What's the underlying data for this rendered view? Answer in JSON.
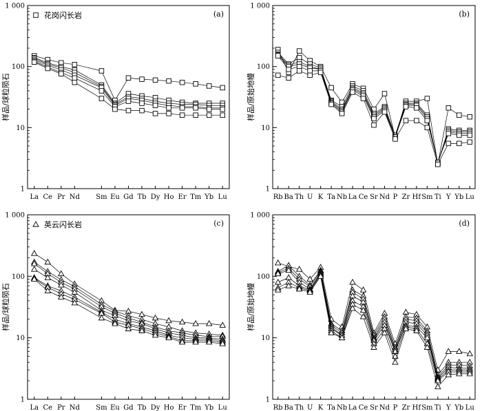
{
  "chart_data": [
    {
      "type": "line",
      "panel": "(a)",
      "ylabel": "样品/球粒陨石",
      "yscale": "log",
      "ylim": [
        1,
        1000
      ],
      "y_ticks": [
        "1",
        "10",
        "100",
        "1 000"
      ],
      "categories": [
        "La",
        "Ce",
        "Pr",
        "Nd",
        "Sm",
        "Eu",
        "Gd",
        "Tb",
        "Dy",
        "Ho",
        "Er",
        "Tm",
        "Yb",
        "Lu"
      ],
      "category_positions": [
        0,
        1,
        2,
        3,
        5,
        6,
        7,
        8,
        9,
        10,
        11,
        12,
        13,
        14
      ],
      "marker": "square",
      "legend": {
        "label": "花岗闪长岩",
        "position": "top-left"
      },
      "series": [
        {
          "values": [
            150,
            130,
            115,
            108,
            85,
            28,
            65,
            62,
            60,
            58,
            55,
            52,
            48,
            45
          ]
        },
        {
          "values": [
            140,
            115,
            100,
            88,
            50,
            25,
            36,
            33,
            31,
            28,
            26,
            25,
            25,
            25
          ]
        },
        {
          "values": [
            135,
            110,
            95,
            80,
            47,
            24,
            32,
            30,
            27,
            25,
            24,
            24,
            23,
            23
          ]
        },
        {
          "values": [
            128,
            105,
            88,
            72,
            45,
            23,
            30,
            28,
            25,
            23,
            22,
            22,
            21,
            21
          ]
        },
        {
          "values": [
            122,
            98,
            80,
            65,
            40,
            22,
            27,
            25,
            23,
            21,
            21,
            21,
            20,
            20
          ]
        },
        {
          "values": [
            118,
            93,
            76,
            55,
            30,
            20,
            19,
            19,
            17,
            17,
            16,
            16,
            16,
            16
          ]
        }
      ]
    },
    {
      "type": "line",
      "panel": "(b)",
      "ylabel": "样品/原始地幔",
      "yscale": "log",
      "ylim": [
        1,
        1000
      ],
      "y_ticks": [
        "1",
        "10",
        "100",
        "1 000"
      ],
      "categories": [
        "Rb",
        "Ba",
        "Th",
        "U",
        "K",
        "Ta",
        "Nb",
        "La",
        "Ce",
        "Sr",
        "Nd",
        "P",
        "Zr",
        "Hf",
        "Sm",
        "Ti",
        "Y",
        "Yb",
        "Lu"
      ],
      "category_positions": [
        0,
        1,
        2,
        3,
        4,
        5,
        6,
        7,
        8,
        9,
        10,
        11,
        12,
        13,
        14,
        15,
        16,
        17,
        18
      ],
      "marker": "square",
      "series": [
        {
          "values": [
            190,
            80,
            180,
            125,
            100,
            45,
            26,
            52,
            44,
            20,
            36,
            7,
            27,
            27,
            30,
            2.5,
            21,
            16,
            15
          ]
        },
        {
          "values": [
            170,
            110,
            140,
            110,
            95,
            28,
            22,
            48,
            40,
            17,
            22,
            7.5,
            25,
            25,
            16,
            2.6,
            9.5,
            9,
            9
          ]
        },
        {
          "values": [
            160,
            105,
            120,
            100,
            90,
            27,
            20,
            45,
            37,
            16,
            21,
            7,
            24,
            24,
            15,
            2.6,
            9,
            8.5,
            8.5
          ]
        },
        {
          "values": [
            155,
            100,
            110,
            95,
            90,
            26,
            19,
            43,
            35,
            15,
            20,
            7,
            23,
            23,
            14,
            2.7,
            8.5,
            8,
            8
          ]
        },
        {
          "values": [
            150,
            90,
            100,
            85,
            85,
            25,
            18,
            41,
            33,
            14,
            19,
            7,
            22,
            21,
            13,
            2.7,
            8,
            7.5,
            7.5
          ]
        },
        {
          "values": [
            72,
            65,
            85,
            72,
            80,
            24,
            17,
            38,
            30,
            11,
            18,
            6.5,
            13,
            13,
            10,
            2.5,
            5.5,
            5.5,
            5.8
          ]
        }
      ]
    },
    {
      "type": "line",
      "panel": "(c)",
      "ylabel": "样品/球粒陨石",
      "yscale": "log",
      "ylim": [
        1,
        1000
      ],
      "y_ticks": [
        "1",
        "10",
        "100",
        "1 000"
      ],
      "categories": [
        "La",
        "Ce",
        "Pr",
        "Nd",
        "Sm",
        "Eu",
        "Gd",
        "Tb",
        "Dy",
        "Ho",
        "Er",
        "Tm",
        "Yb",
        "Lu"
      ],
      "category_positions": [
        0,
        1,
        2,
        3,
        5,
        6,
        7,
        8,
        9,
        10,
        11,
        12,
        13,
        14
      ],
      "marker": "triangle",
      "legend": {
        "label": "英云闪长岩",
        "position": "top-left"
      },
      "series": [
        {
          "values": [
            235,
            170,
            110,
            75,
            40,
            28,
            27,
            24,
            21,
            19,
            18,
            17,
            17,
            16
          ]
        },
        {
          "values": [
            170,
            120,
            88,
            68,
            35,
            27,
            23,
            20,
            17,
            15,
            13,
            12,
            11.5,
            11
          ]
        },
        {
          "values": [
            160,
            110,
            80,
            62,
            32,
            25,
            21,
            18,
            15,
            13,
            12,
            11,
            10.5,
            10.5
          ]
        },
        {
          "values": [
            130,
            95,
            72,
            55,
            28,
            23,
            19,
            17,
            14,
            12,
            11,
            10,
            10,
            9.5
          ]
        },
        {
          "values": [
            95,
            70,
            58,
            46,
            26,
            20,
            17,
            15,
            13,
            11,
            10,
            9.5,
            9.5,
            9
          ]
        },
        {
          "values": [
            92,
            66,
            52,
            42,
            25,
            18,
            16,
            14,
            12,
            10.5,
            9,
            9,
            9,
            8.5
          ]
        },
        {
          "values": [
            90,
            58,
            46,
            37,
            21,
            17,
            14,
            13,
            11,
            10,
            8.5,
            8.5,
            8.5,
            8
          ]
        }
      ]
    },
    {
      "type": "line",
      "panel": "(d)",
      "ylabel": "样品/原始地幔",
      "yscale": "log",
      "ylim": [
        1,
        1000
      ],
      "y_ticks": [
        "1",
        "10",
        "100",
        "1 000"
      ],
      "categories": [
        "Rb",
        "Ba",
        "Th",
        "U",
        "K",
        "Ta",
        "Nb",
        "La",
        "Ce",
        "Sr",
        "Nd",
        "P",
        "Zr",
        "Hf",
        "Sm",
        "Ti",
        "Y",
        "Yb",
        "Lu"
      ],
      "category_positions": [
        0,
        1,
        2,
        3,
        4,
        5,
        6,
        7,
        8,
        9,
        10,
        11,
        12,
        13,
        14,
        15,
        16,
        17,
        18
      ],
      "marker": "triangle",
      "series": [
        {
          "values": [
            165,
            145,
            130,
            90,
            140,
            20,
            15,
            80,
            60,
            12,
            25,
            8,
            26,
            24,
            15,
            3,
            6,
            6,
            5.5
          ]
        },
        {
          "values": [
            120,
            150,
            100,
            72,
            125,
            17,
            13,
            60,
            48,
            11,
            22,
            7,
            22,
            21,
            13,
            2.5,
            4,
            4,
            4
          ]
        },
        {
          "values": [
            115,
            135,
            90,
            68,
            120,
            16,
            12,
            55,
            43,
            10,
            20,
            6.5,
            20,
            19,
            12,
            2.3,
            3.6,
            3.6,
            3.5
          ]
        },
        {
          "values": [
            110,
            125,
            80,
            62,
            115,
            15,
            11,
            48,
            38,
            9.5,
            18,
            6,
            18,
            17,
            11,
            2.2,
            3.3,
            3.2,
            3.2
          ]
        },
        {
          "values": [
            80,
            95,
            70,
            60,
            110,
            14,
            11,
            40,
            32,
            9,
            16,
            6,
            16,
            15,
            10,
            2.1,
            3,
            3,
            3
          ]
        },
        {
          "values": [
            65,
            80,
            65,
            58,
            105,
            13,
            10,
            35,
            28,
            8,
            14,
            5,
            15,
            14,
            8,
            2,
            2.8,
            2.8,
            2.8
          ]
        },
        {
          "values": [
            60,
            70,
            62,
            55,
            100,
            12,
            10,
            30,
            22,
            7,
            12,
            4,
            14,
            13,
            7,
            1.6,
            2.5,
            2.6,
            2.6
          ]
        }
      ]
    }
  ]
}
